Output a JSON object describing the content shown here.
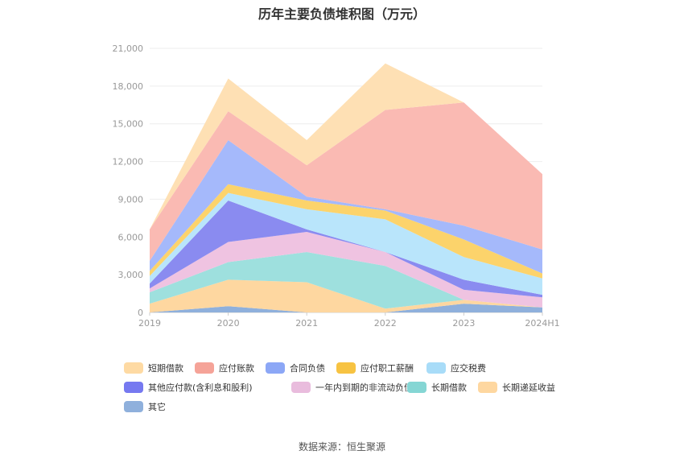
{
  "title": "历年主要负债堆积图（万元）",
  "source": "数据来源：恒生聚源",
  "chart_data": {
    "type": "area",
    "stacked": true,
    "x": [
      "2019",
      "2020",
      "2021",
      "2022",
      "2023",
      "2024H1"
    ],
    "ylim": [
      0,
      21000
    ],
    "yticks": [
      "0",
      "3,000",
      "6,000",
      "9,000",
      "12,000",
      "15,000",
      "18,000",
      "21,000"
    ],
    "grid": true,
    "legend_position": "bottom",
    "series": [
      {
        "name": "其它",
        "color": "#8fb0dc",
        "values": [
          0,
          500,
          0,
          0,
          700,
          400
        ]
      },
      {
        "name": "长期递延收益",
        "color": "#fed7a0",
        "values": [
          700,
          2100,
          2400,
          300,
          300,
          0
        ]
      },
      {
        "name": "长期借款",
        "color": "#9ee0de",
        "values": [
          900,
          1400,
          2400,
          3400,
          0,
          0
        ]
      },
      {
        "name": "一年内到期的非流动负债",
        "color": "#efc3e1",
        "values": [
          300,
          1600,
          1600,
          1100,
          800,
          800
        ]
      },
      {
        "name": "其他应付款(含利息和股利)",
        "color": "#8a8bf0",
        "values": [
          400,
          3300,
          200,
          0,
          800,
          200
        ]
      },
      {
        "name": "应交税费",
        "color": "#b9e5fb",
        "values": [
          600,
          600,
          1600,
          2600,
          1800,
          1300
        ]
      },
      {
        "name": "应付职工薪酬",
        "color": "#fcd36b",
        "values": [
          400,
          700,
          700,
          700,
          1400,
          400
        ]
      },
      {
        "name": "合同负债",
        "color": "#a5b9fb",
        "values": [
          800,
          3500,
          300,
          100,
          1100,
          1900
        ]
      },
      {
        "name": "应付账款",
        "color": "#fabab3",
        "values": [
          2500,
          2300,
          2500,
          7900,
          9800,
          6000
        ]
      },
      {
        "name": "短期借款",
        "color": "#fee0b4",
        "values": [
          0,
          2600,
          2000,
          3700,
          0,
          0
        ]
      }
    ],
    "legend": [
      {
        "name": "短期借款",
        "color": "#fedaa3"
      },
      {
        "name": "应付账款",
        "color": "#f5a398"
      },
      {
        "name": "合同负债",
        "color": "#8ca7f6"
      },
      {
        "name": "应付职工薪酬",
        "color": "#f7c342"
      },
      {
        "name": "应交税费",
        "color": "#a8dcf8"
      },
      {
        "name": "其他应付款(含利息和股利)",
        "color": "#7679f0"
      },
      {
        "name": "一年内到期的非流动负债",
        "color": "#e9bcdd"
      },
      {
        "name": "长期借款",
        "color": "#85d6d4"
      },
      {
        "name": "长期递延收益",
        "color": "#fed7a0"
      },
      {
        "name": "其它",
        "color": "#8fb0dc"
      }
    ]
  }
}
